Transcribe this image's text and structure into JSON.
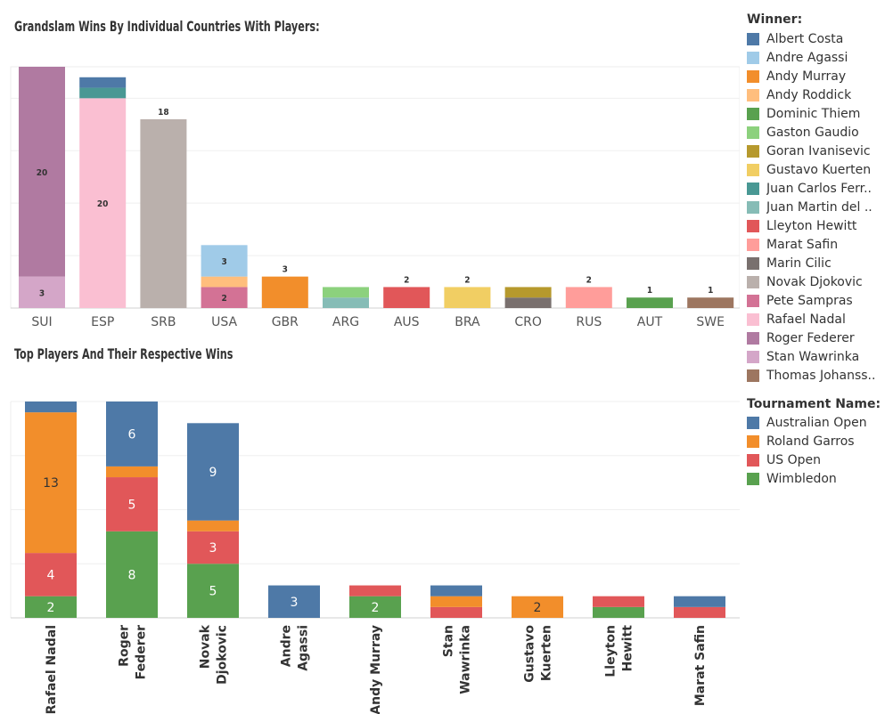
{
  "chart_data": [
    {
      "type": "bar",
      "stacked": true,
      "title": "Grandslam Wins By Individual Countries With Players:",
      "categories": [
        "SUI",
        "ESP",
        "SRB",
        "USA",
        "GBR",
        "ARG",
        "AUS",
        "BRA",
        "CRO",
        "RUS",
        "AUT",
        "SWE"
      ],
      "ylim": [
        0,
        23
      ],
      "grid": true,
      "stacks": [
        {
          "category": "SUI",
          "segments": [
            {
              "player": "Stan Wawrinka",
              "value": 3,
              "label": "3"
            },
            {
              "player": "Roger Federer",
              "value": 20,
              "label": "20"
            }
          ]
        },
        {
          "category": "ESP",
          "segments": [
            {
              "player": "Rafael Nadal",
              "value": 20,
              "label": "20"
            },
            {
              "player": "Juan Carlos Ferrero",
              "value": 1
            },
            {
              "player": "Albert Costa",
              "value": 1
            }
          ]
        },
        {
          "category": "SRB",
          "segments": [
            {
              "player": "Novak Djokovic",
              "value": 18
            }
          ],
          "total_label": "18"
        },
        {
          "category": "USA",
          "segments": [
            {
              "player": "Pete Sampras",
              "value": 2,
              "label": "2"
            },
            {
              "player": "Andy Roddick",
              "value": 1
            },
            {
              "player": "Andre Agassi",
              "value": 3,
              "label": "3"
            }
          ]
        },
        {
          "category": "GBR",
          "segments": [
            {
              "player": "Andy Murray",
              "value": 3
            }
          ],
          "total_label": "3"
        },
        {
          "category": "ARG",
          "segments": [
            {
              "player": "Juan Martin del Potro",
              "value": 1
            },
            {
              "player": "Gaston Gaudio",
              "value": 1
            }
          ]
        },
        {
          "category": "AUS",
          "segments": [
            {
              "player": "Lleyton Hewitt",
              "value": 2
            }
          ],
          "total_label": "2"
        },
        {
          "category": "BRA",
          "segments": [
            {
              "player": "Gustavo Kuerten",
              "value": 2
            }
          ],
          "total_label": "2"
        },
        {
          "category": "CRO",
          "segments": [
            {
              "player": "Marin Cilic",
              "value": 1
            },
            {
              "player": "Goran Ivanisevic",
              "value": 1
            }
          ]
        },
        {
          "category": "RUS",
          "segments": [
            {
              "player": "Marat Safin",
              "value": 2
            }
          ],
          "total_label": "2"
        },
        {
          "category": "AUT",
          "segments": [
            {
              "player": "Dominic Thiem",
              "value": 1
            }
          ],
          "total_label": "1"
        },
        {
          "category": "SWE",
          "segments": [
            {
              "player": "Thomas Johansson",
              "value": 1
            }
          ],
          "total_label": "1"
        }
      ]
    },
    {
      "type": "bar",
      "stacked": true,
      "title": "Top Players And Their Respective Wins",
      "categories": [
        "Rafael Nadal",
        "Roger Federer",
        "Novak Djokovic",
        "Andre Agassi",
        "Andy Murray",
        "Stan Wawrinka",
        "Gustavo Kuerten",
        "Lleyton Hewitt",
        "Marat Safin"
      ],
      "ylim": [
        0,
        20
      ],
      "grid": true,
      "series_order": [
        "Wimbledon",
        "US Open",
        "Roland Garros",
        "Australian Open"
      ],
      "stacks": [
        {
          "category": "Rafael Nadal",
          "values": {
            "Wimbledon": 2,
            "US Open": 4,
            "Roland Garros": 13,
            "Australian Open": 1
          },
          "labels": {
            "Wimbledon": "2",
            "US Open": "4",
            "Roland Garros": "13"
          }
        },
        {
          "category": "Roger Federer",
          "values": {
            "Wimbledon": 8,
            "US Open": 5,
            "Roland Garros": 1,
            "Australian Open": 6
          },
          "labels": {
            "Wimbledon": "8",
            "US Open": "5",
            "Australian Open": "6"
          }
        },
        {
          "category": "Novak Djokovic",
          "values": {
            "Wimbledon": 5,
            "US Open": 3,
            "Roland Garros": 1,
            "Australian Open": 9
          },
          "labels": {
            "Wimbledon": "5",
            "US Open": "3",
            "Australian Open": "9"
          }
        },
        {
          "category": "Andre Agassi",
          "values": {
            "Australian Open": 3
          },
          "labels": {
            "Australian Open": "3"
          }
        },
        {
          "category": "Andy Murray",
          "values": {
            "Wimbledon": 2,
            "US Open": 1
          },
          "labels": {
            "Wimbledon": "2"
          }
        },
        {
          "category": "Stan Wawrinka",
          "values": {
            "US Open": 1,
            "Roland Garros": 1,
            "Australian Open": 1
          },
          "labels": {}
        },
        {
          "category": "Gustavo Kuerten",
          "values": {
            "Roland Garros": 2
          },
          "labels": {
            "Roland Garros": "2"
          }
        },
        {
          "category": "Lleyton Hewitt",
          "values": {
            "Wimbledon": 1,
            "US Open": 1
          },
          "labels": {}
        },
        {
          "category": "Marat Safin",
          "values": {
            "US Open": 1,
            "Australian Open": 1
          },
          "labels": {}
        }
      ]
    }
  ],
  "chart1_axis_labels": [
    "SUI",
    "ESP",
    "SRB",
    "USA",
    "GBR",
    "ARG",
    "AUS",
    "BRA",
    "CRO",
    "RUS",
    "AUT",
    "SWE"
  ],
  "chart2_axis_labels": [
    [
      "Rafael Nadal"
    ],
    [
      "Roger",
      "Federer"
    ],
    [
      "Novak",
      "Djokovic"
    ],
    [
      "Andre",
      "Agassi"
    ],
    [
      "Andy Murray"
    ],
    [
      "Stan",
      "Wawrinka"
    ],
    [
      "Gustavo",
      "Kuerten"
    ],
    [
      "Lleyton",
      "Hewitt"
    ],
    [
      "Marat Safin"
    ]
  ],
  "legend_winner": {
    "title": "Winner:",
    "items": [
      {
        "label": "Albert Costa",
        "color": "#4e79a7"
      },
      {
        "label": "Andre Agassi",
        "color": "#a0cbe8"
      },
      {
        "label": "Andy Murray",
        "color": "#f28e2b"
      },
      {
        "label": "Andy Roddick",
        "color": "#ffbe7d"
      },
      {
        "label": "Dominic Thiem",
        "color": "#59a14f"
      },
      {
        "label": "Gaston Gaudio",
        "color": "#8cd17d"
      },
      {
        "label": "Goran Ivanisevic",
        "color": "#b6992d"
      },
      {
        "label": "Gustavo Kuerten",
        "color": "#f1ce63"
      },
      {
        "label": "Juan Carlos Ferr..",
        "color": "#499894"
      },
      {
        "label": "Juan Martin del ..",
        "color": "#86bcb6"
      },
      {
        "label": "Lleyton Hewitt",
        "color": "#e15759"
      },
      {
        "label": "Marat Safin",
        "color": "#ff9d9a"
      },
      {
        "label": "Marin Cilic",
        "color": "#79706e"
      },
      {
        "label": "Novak Djokovic",
        "color": "#bab0ac"
      },
      {
        "label": "Pete Sampras",
        "color": "#d37295"
      },
      {
        "label": "Rafael Nadal",
        "color": "#fabfd2"
      },
      {
        "label": "Roger Federer",
        "color": "#b07aa1"
      },
      {
        "label": "Stan Wawrinka",
        "color": "#d4a6c8"
      },
      {
        "label": "Thomas Johanss..",
        "color": "#9d7660"
      }
    ]
  },
  "legend_tournament": {
    "title": "Tournament Name:",
    "items": [
      {
        "label": "Australian Open",
        "color": "#4e79a7"
      },
      {
        "label": "Roland Garros",
        "color": "#f28e2b"
      },
      {
        "label": "US Open",
        "color": "#e15759"
      },
      {
        "label": "Wimbledon",
        "color": "#59a14f"
      }
    ]
  },
  "player_colors": {
    "Albert Costa": "#4e79a7",
    "Andre Agassi": "#a0cbe8",
    "Andy Murray": "#f28e2b",
    "Andy Roddick": "#ffbe7d",
    "Dominic Thiem": "#59a14f",
    "Gaston Gaudio": "#8cd17d",
    "Goran Ivanisevic": "#b6992d",
    "Gustavo Kuerten": "#f1ce63",
    "Juan Carlos Ferrero": "#499894",
    "Juan Martin del Potro": "#86bcb6",
    "Lleyton Hewitt": "#e15759",
    "Marat Safin": "#ff9d9a",
    "Marin Cilic": "#79706e",
    "Novak Djokovic": "#bab0ac",
    "Pete Sampras": "#d37295",
    "Rafael Nadal": "#fabfd2",
    "Roger Federer": "#b07aa1",
    "Stan Wawrinka": "#d4a6c8",
    "Thomas Johansson": "#9d7660"
  },
  "tournament_colors": {
    "Australian Open": "#4e79a7",
    "Roland Garros": "#f28e2b",
    "US Open": "#e15759",
    "Wimbledon": "#59a14f"
  }
}
